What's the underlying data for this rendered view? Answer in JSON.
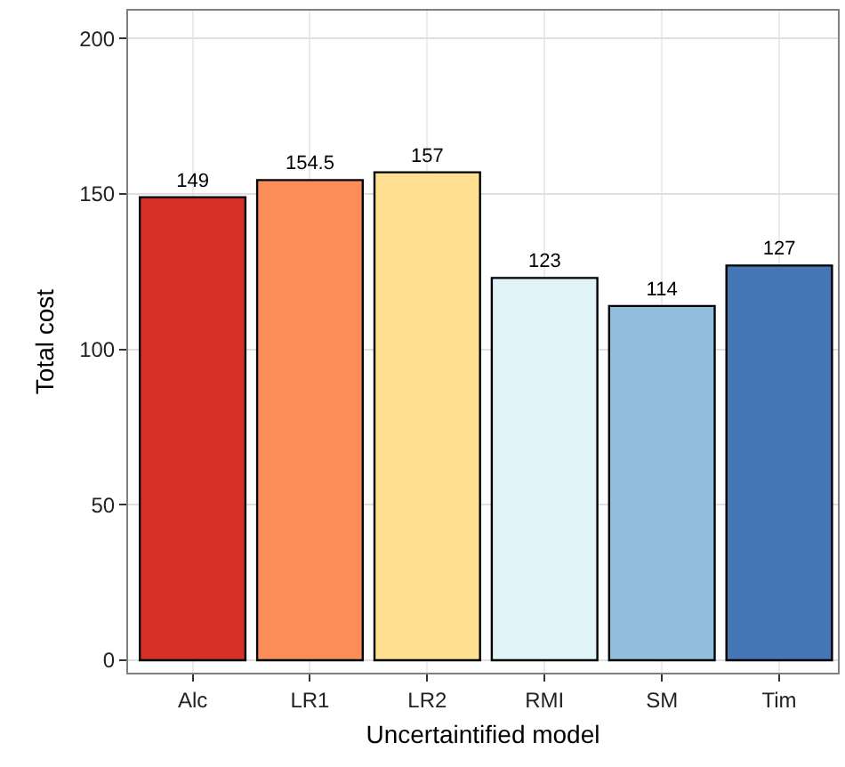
{
  "chart_data": {
    "type": "bar",
    "xlabel": "Uncertaintified model",
    "ylabel": "Total cost",
    "categories": [
      "Alc",
      "LR1",
      "LR2",
      "RMI",
      "SM",
      "Tim"
    ],
    "values": [
      149,
      154.5,
      157,
      123,
      114,
      127
    ],
    "colors": [
      "#d73027",
      "#fc8d59",
      "#fee090",
      "#e0f3f8",
      "#91bfdb",
      "#4575b4"
    ],
    "ylim": [
      -4,
      209
    ],
    "yticks": [
      0,
      50,
      100,
      150,
      200
    ],
    "grid": true,
    "data_labels": true
  }
}
